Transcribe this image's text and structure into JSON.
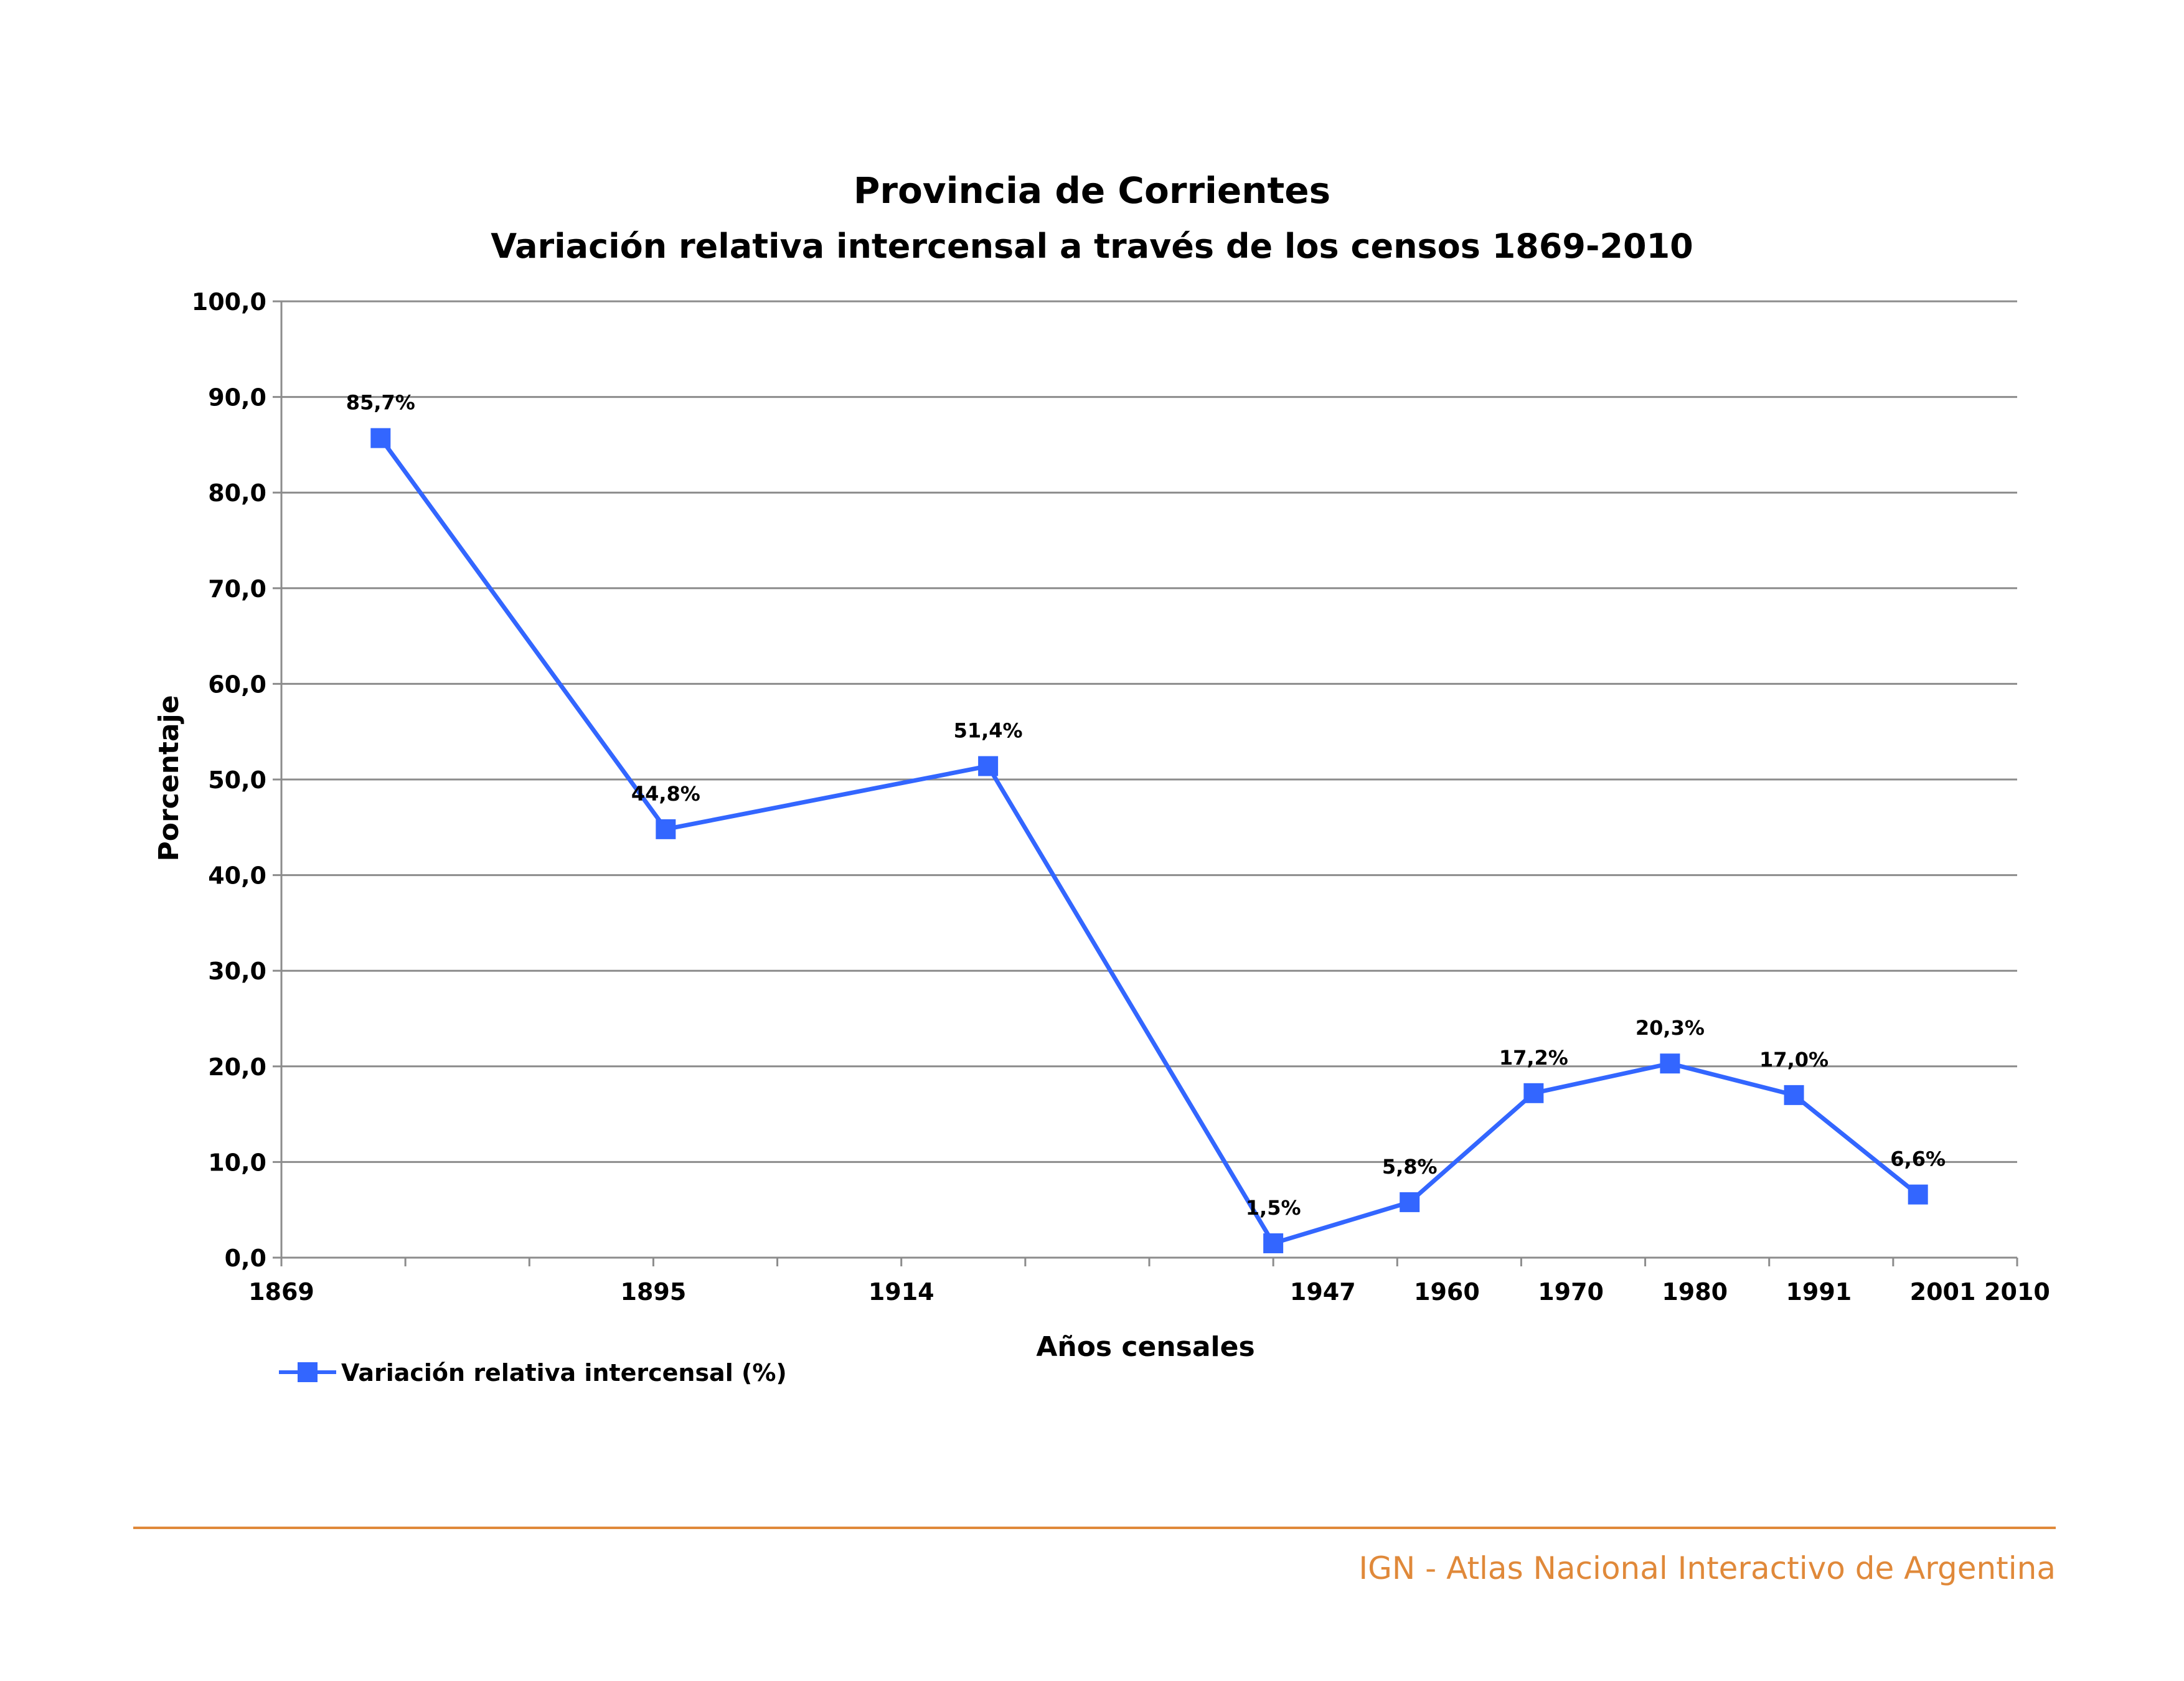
{
  "colors": {
    "series": "#3366ff",
    "grid": "#8c8c8c",
    "footer": "#e0893a"
  },
  "chart_data": {
    "type": "line",
    "title": "Provincia de Corrientes",
    "subtitle": "Variación relativa intercensal a través de los censos 1869-2010",
    "xlabel": "Años censales",
    "ylabel": "Porcentaje",
    "ylim": [
      0,
      100
    ],
    "y_ticks": [
      "0,0",
      "10,0",
      "20,0",
      "30,0",
      "40,0",
      "50,0",
      "60,0",
      "70,0",
      "80,0",
      "90,0",
      "100,0"
    ],
    "x_tick_labels": [
      "1869",
      "1895",
      "1914",
      "1947",
      "1960",
      "1970",
      "1980",
      "1991",
      "2001",
      "2010"
    ],
    "grid": true,
    "legend_position": "bottom-left",
    "series": [
      {
        "name": "Variación relativa intercensal (%)",
        "points": [
          {
            "x": "1869-1895",
            "y": 85.7,
            "label": "85,7%"
          },
          {
            "x": "1895-1914",
            "y": 44.8,
            "label": "44,8%"
          },
          {
            "x": "1914-1947",
            "y": 51.4,
            "label": "51,4%"
          },
          {
            "x": "1947-1960",
            "y": 1.5,
            "label": "1,5%"
          },
          {
            "x": "1960-1970",
            "y": 5.8,
            "label": "5,8%"
          },
          {
            "x": "1970-1980",
            "y": 17.2,
            "label": "17,2%"
          },
          {
            "x": "1980-1991",
            "y": 20.3,
            "label": "20,3%"
          },
          {
            "x": "1991-2001",
            "y": 17.0,
            "label": "17,0%"
          },
          {
            "x": "2001-2010",
            "y": 6.6,
            "label": "6,6%"
          }
        ]
      }
    ]
  },
  "footer": {
    "text": "IGN - Atlas Nacional Interactivo de Argentina"
  }
}
